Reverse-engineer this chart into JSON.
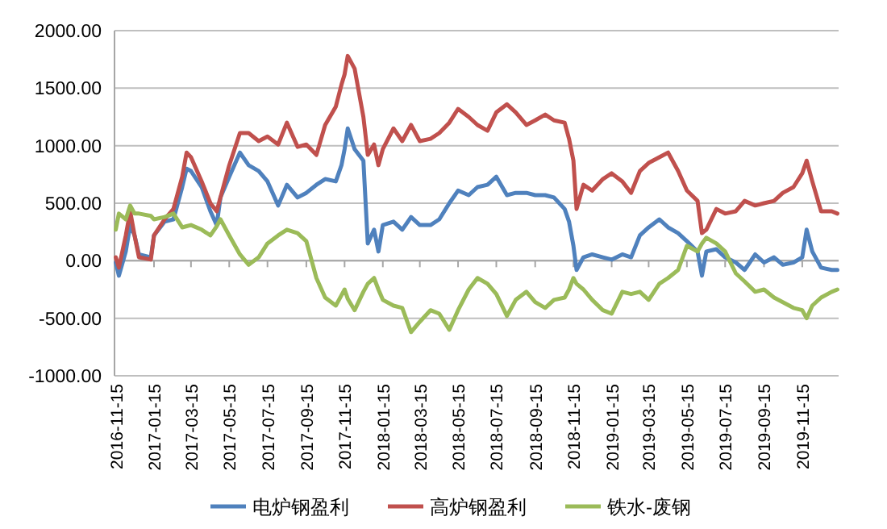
{
  "chart_data": {
    "type": "line",
    "x": [
      "2016-11-15",
      "2016-11-20",
      "2016-12-01",
      "2016-12-08",
      "2016-12-15",
      "2016-12-22",
      "2017-01-10",
      "2017-01-15",
      "2017-02-01",
      "2017-02-15",
      "2017-03-01",
      "2017-03-08",
      "2017-03-15",
      "2017-04-01",
      "2017-04-15",
      "2017-04-25",
      "2017-05-01",
      "2017-05-15",
      "2017-06-01",
      "2017-06-15",
      "2017-07-01",
      "2017-07-15",
      "2017-08-01",
      "2017-08-15",
      "2017-09-01",
      "2017-09-15",
      "2017-10-01",
      "2017-10-15",
      "2017-11-01",
      "2017-11-10",
      "2017-11-15",
      "2017-11-20",
      "2017-12-01",
      "2017-12-15",
      "2017-12-22",
      "2018-01-01",
      "2018-01-08",
      "2018-01-15",
      "2018-02-01",
      "2018-02-15",
      "2018-03-01",
      "2018-03-15",
      "2018-04-01",
      "2018-04-15",
      "2018-05-01",
      "2018-05-15",
      "2018-06-01",
      "2018-06-15",
      "2018-07-01",
      "2018-07-15",
      "2018-08-01",
      "2018-08-15",
      "2018-09-01",
      "2018-09-15",
      "2018-10-01",
      "2018-10-15",
      "2018-11-01",
      "2018-11-08",
      "2018-11-15",
      "2018-11-20",
      "2018-12-01",
      "2018-12-15",
      "2019-01-01",
      "2019-01-15",
      "2019-02-01",
      "2019-02-15",
      "2019-03-01",
      "2019-03-15",
      "2019-04-01",
      "2019-04-15",
      "2019-05-01",
      "2019-05-15",
      "2019-06-01",
      "2019-06-08",
      "2019-06-15",
      "2019-07-01",
      "2019-07-15",
      "2019-08-01",
      "2019-08-15",
      "2019-09-01",
      "2019-09-15",
      "2019-10-01",
      "2019-10-15",
      "2019-11-01",
      "2019-11-15",
      "2019-11-22",
      "2019-12-01",
      "2019-12-15",
      "2020-01-01",
      "2020-01-10"
    ],
    "series": [
      {
        "name": "电炉钢盈利",
        "color": "#4f81bd",
        "values": [
          -15,
          -130,
          80,
          310,
          220,
          55,
          30,
          220,
          340,
          360,
          640,
          800,
          780,
          640,
          430,
          310,
          550,
          730,
          940,
          830,
          780,
          690,
          480,
          660,
          550,
          590,
          660,
          710,
          690,
          830,
          970,
          1150,
          970,
          870,
          150,
          270,
          80,
          310,
          340,
          270,
          380,
          310,
          310,
          360,
          500,
          610,
          570,
          640,
          660,
          730,
          570,
          590,
          590,
          570,
          570,
          550,
          450,
          340,
          130,
          -80,
          30,
          55,
          30,
          10,
          55,
          30,
          220,
          290,
          360,
          290,
          240,
          170,
          80,
          -130,
          80,
          100,
          30,
          -15,
          -80,
          55,
          -15,
          30,
          -35,
          -15,
          30,
          270,
          80,
          -60,
          -80,
          -80
        ]
      },
      {
        "name": "高炉钢盈利",
        "color": "#c0504d",
        "values": [
          30,
          -60,
          220,
          430,
          220,
          30,
          10,
          220,
          360,
          450,
          730,
          940,
          900,
          690,
          500,
          430,
          550,
          830,
          1110,
          1110,
          1040,
          1080,
          1010,
          1200,
          990,
          1010,
          920,
          1180,
          1340,
          1530,
          1620,
          1780,
          1670,
          1250,
          920,
          1010,
          830,
          970,
          1150,
          1040,
          1180,
          1040,
          1060,
          1110,
          1200,
          1320,
          1250,
          1180,
          1130,
          1290,
          1360,
          1290,
          1180,
          1220,
          1270,
          1220,
          1200,
          1060,
          870,
          450,
          660,
          610,
          710,
          760,
          690,
          590,
          780,
          850,
          900,
          940,
          780,
          610,
          520,
          240,
          270,
          450,
          410,
          430,
          520,
          480,
          500,
          520,
          590,
          640,
          760,
          870,
          690,
          430,
          430,
          410
        ]
      },
      {
        "name": "铁水-废钢",
        "color": "#9bbb59",
        "values": [
          270,
          410,
          360,
          480,
          410,
          410,
          390,
          360,
          380,
          410,
          290,
          300,
          310,
          270,
          220,
          300,
          360,
          220,
          55,
          -35,
          30,
          150,
          220,
          270,
          240,
          170,
          -150,
          -320,
          -390,
          -300,
          -250,
          -330,
          -430,
          -270,
          -200,
          -150,
          -250,
          -340,
          -390,
          -410,
          -620,
          -530,
          -430,
          -460,
          -600,
          -430,
          -250,
          -150,
          -200,
          -290,
          -480,
          -340,
          -270,
          -360,
          -410,
          -340,
          -320,
          -250,
          -150,
          -200,
          -250,
          -340,
          -430,
          -460,
          -270,
          -290,
          -270,
          -340,
          -200,
          -150,
          -80,
          130,
          80,
          150,
          200,
          150,
          80,
          -110,
          -180,
          -270,
          -250,
          -320,
          -360,
          -410,
          -430,
          -500,
          -390,
          -320,
          -270,
          -250
        ]
      }
    ],
    "xlim": [
      "2016-11-13",
      "2020-01-12"
    ],
    "xticks": [
      "2016-11-15",
      "2017-01-15",
      "2017-03-15",
      "2017-05-15",
      "2017-07-15",
      "2017-09-15",
      "2017-11-15",
      "2018-01-15",
      "2018-03-15",
      "2018-05-15",
      "2018-07-15",
      "2018-09-15",
      "2018-11-15",
      "2019-01-15",
      "2019-03-15",
      "2019-05-15",
      "2019-07-15",
      "2019-09-15",
      "2019-11-15"
    ],
    "ylim": [
      -1000,
      2000
    ],
    "yticks": [
      {
        "value": -1000,
        "label": "-1000.00"
      },
      {
        "value": -500,
        "label": "-500.00"
      },
      {
        "value": 0,
        "label": "0.00"
      },
      {
        "value": 500,
        "label": "500.00"
      },
      {
        "value": 1000,
        "label": "1000.00"
      },
      {
        "value": 1500,
        "label": "1500.00"
      },
      {
        "value": 2000,
        "label": "2000.00"
      }
    ],
    "grid": "y",
    "legend": "bottom"
  }
}
